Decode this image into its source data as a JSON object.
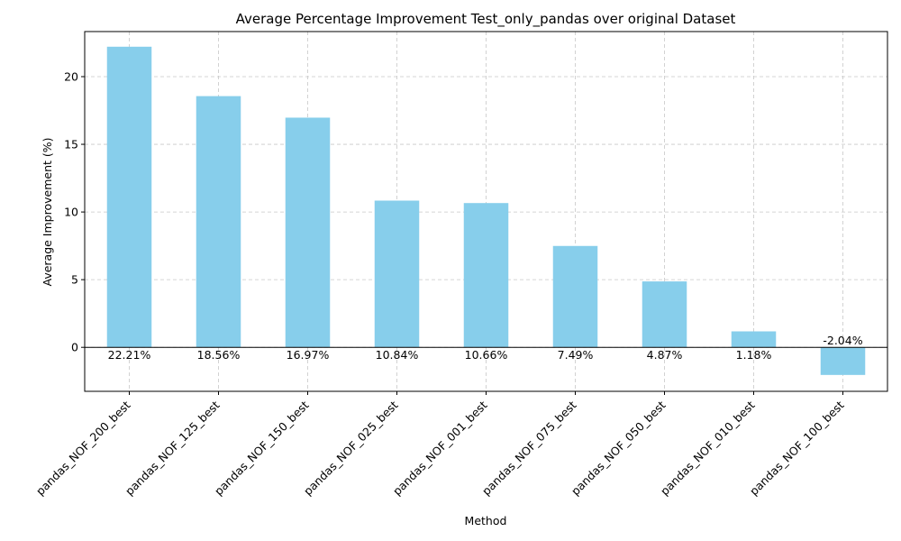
{
  "colors": {
    "bar": "#87ceeb",
    "zero_line": "#000000",
    "grid": "#c8c8c8"
  },
  "chart_data": {
    "type": "bar",
    "title": "Average Percentage Improvement Test_only_pandas over original Dataset",
    "xlabel": "Method",
    "ylabel": "Average Improvement (%)",
    "categories": [
      "pandas_NOF_200_best",
      "pandas_NOF_125_best",
      "pandas_NOF_150_best",
      "pandas_NOF_025_best",
      "pandas_NOF_001_best",
      "pandas_NOF_075_best",
      "pandas_NOF_050_best",
      "pandas_NOF_010_best",
      "pandas_NOF_100_best"
    ],
    "values": [
      22.21,
      18.56,
      16.97,
      10.84,
      10.66,
      7.49,
      4.87,
      1.18,
      -2.04
    ],
    "data_labels": [
      "22.21%",
      "18.56%",
      "16.97%",
      "10.84%",
      "10.66%",
      "7.49%",
      "4.87%",
      "1.18%",
      "-2.04%"
    ],
    "ylim": [
      -3.25,
      23.33
    ],
    "yticks": [
      0,
      5,
      10,
      15,
      20
    ],
    "grid": true,
    "legend": false
  }
}
